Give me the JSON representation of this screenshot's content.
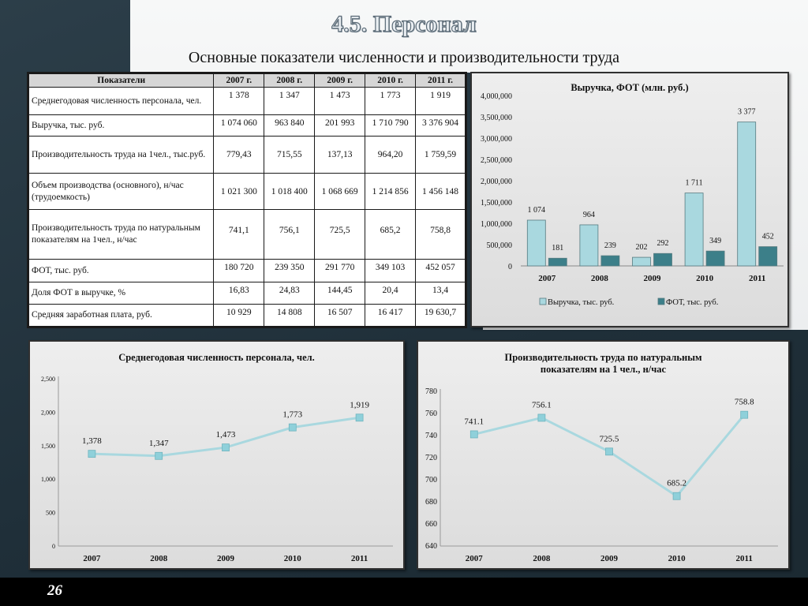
{
  "page": {
    "title": "4.5. Персонал",
    "subtitle": "Основные показатели численности и производительности труда",
    "page_number": "26"
  },
  "table": {
    "headers": [
      "Показатели",
      "2007 г.",
      "2008 г.",
      "2009 г.",
      "2010 г.",
      "2011 г."
    ],
    "rows": [
      {
        "label": "Среднегодовая численность персонала, чел.",
        "values": [
          "1 378",
          "1 347",
          "1 473",
          "1 773",
          "1 919"
        ]
      },
      {
        "label": "Выручка, тыс. руб.",
        "values": [
          "1 074 060",
          "963 840",
          "201 993",
          "1 710 790",
          "3 376 904"
        ]
      },
      {
        "label": "Производительность труда на 1чел., тыс.руб.",
        "values": [
          "779,43",
          "715,55",
          "137,13",
          "964,20",
          "1 759,59"
        ]
      },
      {
        "label": "Объем производства (основного), н/час (трудоемкость)",
        "values": [
          "1 021 300",
          "1 018 400",
          "1 068 669",
          "1 214 856",
          "1 456 148"
        ]
      },
      {
        "label": "Производительность труда по натуральным показателям на 1чел., н/час",
        "values": [
          "741,1",
          "756,1",
          "725,5",
          "685,2",
          "758,8"
        ]
      },
      {
        "label": "ФОТ, тыс. руб.",
        "values": [
          "180 720",
          "239 350",
          "291 770",
          "349 103",
          "452 057"
        ]
      },
      {
        "label": "Доля ФОТ в выручке, %",
        "values": [
          "16,83",
          "24,83",
          "144,45",
          "20,4",
          "13,4"
        ]
      },
      {
        "label": "Средняя заработная плата, руб.",
        "values": [
          "10 929",
          "14 808",
          "16 507",
          "16 417",
          "19 630,7"
        ]
      }
    ]
  },
  "chart_data": [
    {
      "type": "bar",
      "title": "Выручка, ФОТ (млн. руб.)",
      "categories": [
        "2007",
        "2008",
        "2009",
        "2010",
        "2011"
      ],
      "ylim": [
        0,
        4000000
      ],
      "yticks": [
        "0",
        "500,000",
        "1,000,000",
        "1,500,000",
        "2,000,000",
        "2,500,000",
        "3,000,000",
        "3,500,000",
        "4,000,000"
      ],
      "legend_position": "bottom",
      "series": [
        {
          "name": "Выручка, тыс. руб.",
          "color": "#a9d8df",
          "values": [
            1074060,
            963840,
            201993,
            1710790,
            3376904
          ],
          "labels": [
            "1 074",
            "964",
            "202",
            "1 711",
            "3 377"
          ]
        },
        {
          "name": "ФОТ, тыс. руб.",
          "color": "#3c7f89",
          "values": [
            180720,
            239350,
            291770,
            349103,
            452057
          ],
          "labels": [
            "181",
            "239",
            "292",
            "349",
            "452"
          ]
        }
      ]
    },
    {
      "type": "line",
      "title": "Среднегодовая численность персонала, чел.",
      "categories": [
        "2007",
        "2008",
        "2009",
        "2010",
        "2011"
      ],
      "ylim": [
        0,
        2500
      ],
      "yticks": [
        "0",
        "500",
        "1,000",
        "1,500",
        "2,000",
        "2,500"
      ],
      "color": "#a9d8df",
      "values": [
        1378,
        1347,
        1473,
        1773,
        1919
      ],
      "labels": [
        "1,378",
        "1,347",
        "1,473",
        "1,773",
        "1,919"
      ]
    },
    {
      "type": "line",
      "title": "Производительность труда по натуральным показателям на 1 чел., н/час",
      "categories": [
        "2007",
        "2008",
        "2009",
        "2010",
        "2011"
      ],
      "ylim": [
        640,
        780
      ],
      "yticks": [
        "640",
        "660",
        "680",
        "700",
        "720",
        "740",
        "760",
        "780"
      ],
      "color": "#a9d8df",
      "values": [
        741.1,
        756.1,
        725.5,
        685.2,
        758.8
      ],
      "labels": [
        "741.1",
        "756.1",
        "725.5",
        "685.2",
        "758.8"
      ]
    }
  ]
}
